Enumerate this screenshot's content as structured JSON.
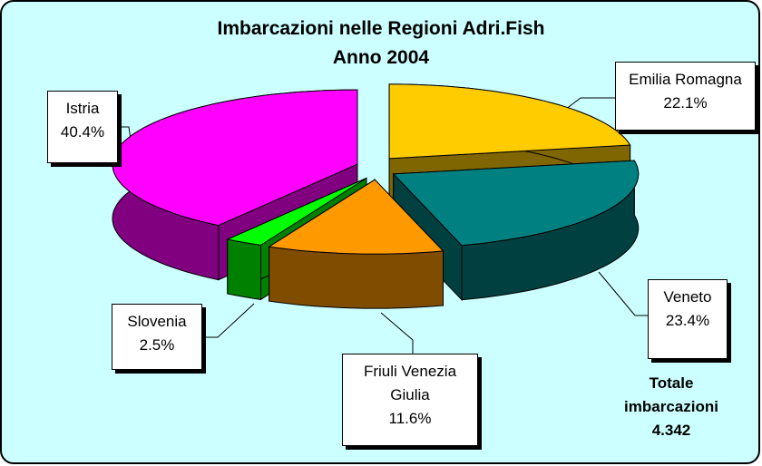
{
  "chart_data": {
    "type": "pie3d",
    "title": "Imbarcazioni nelle Regioni Adri.Fish",
    "subtitle": "Anno 2004",
    "categories": [
      "Emilia Romagna",
      "Veneto",
      "Friuli Venezia Giulia",
      "Slovenia",
      "Istria"
    ],
    "values": [
      22.1,
      23.4,
      11.6,
      2.5,
      40.4
    ],
    "value_labels": [
      "22.1%",
      "23.4%",
      "11.6%",
      "2.5%",
      "40.4%"
    ],
    "colors": [
      "#ffcc00",
      "#008080",
      "#ff9900",
      "#00ff00",
      "#ff00ff"
    ],
    "annotation": [
      "Totale",
      "imbarcazioni",
      "4.342"
    ]
  }
}
